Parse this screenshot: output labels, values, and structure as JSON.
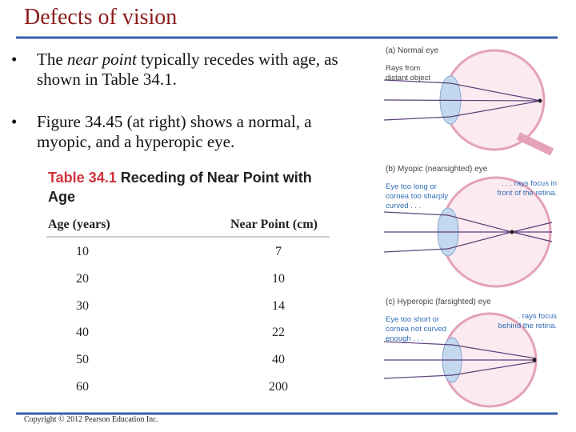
{
  "title": "Defects of vision",
  "bullets": [
    {
      "parts": [
        "The ",
        "near point",
        " typically recedes with age, as shown in Table 34.1."
      ]
    },
    {
      "parts": [
        "Figure 34.45 (at right) shows a normal, a myopic, and a hyperopic eye."
      ]
    }
  ],
  "table": {
    "label": "Table 34.1",
    "caption": "Receding of Near Point with Age",
    "header": [
      "Age (years)",
      "Near Point (cm)"
    ],
    "rows": [
      [
        10,
        7
      ],
      [
        20,
        10
      ],
      [
        30,
        14
      ],
      [
        40,
        22
      ],
      [
        50,
        40
      ],
      [
        60,
        200
      ]
    ]
  },
  "figure": {
    "panels": [
      {
        "label": "(a) Normal eye",
        "left_note": "Rays from distant object"
      },
      {
        "label": "(b) Myopic (nearsighted) eye",
        "left_note": "Eye too long or cornea too sharply curved . . .",
        "right_note": ". . . rays focus in front of the retina."
      },
      {
        "label": "(c) Hyperopic (farsighted) eye",
        "left_note": "Eye too short or cornea not curved enough . . .",
        "right_note": ". . . rays focus behind the retina."
      }
    ]
  },
  "footer": "Copyright © 2012 Pearson Education Inc."
}
